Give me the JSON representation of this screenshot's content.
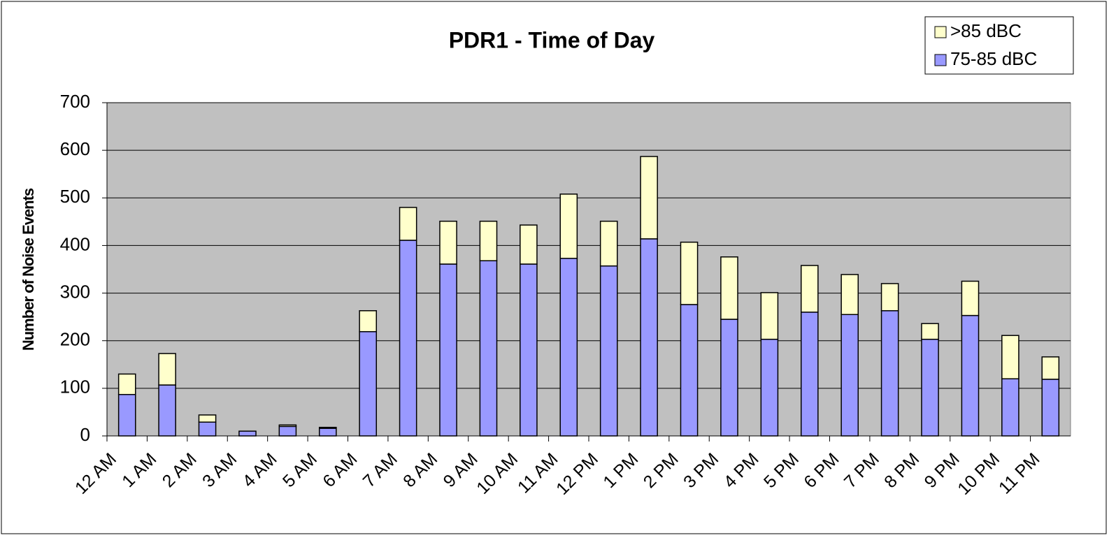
{
  "chart_data": {
    "type": "stacked_bar",
    "title": "PDR1 - Time of Day",
    "y_label": "Number of Noise Events",
    "categories": [
      "12 AM",
      "1 AM",
      "2 AM",
      "3 AM",
      "4 AM",
      "5 AM",
      "6 AM",
      "7 AM",
      "8 AM",
      "9 AM",
      "10 AM",
      "11 AM",
      "12 PM",
      "1 PM",
      "2 PM",
      "3 PM",
      "4 PM",
      "5 PM",
      "6 PM",
      "7 PM",
      "8 PM",
      "9 PM",
      "10 PM",
      "11 PM"
    ],
    "series": [
      {
        "name": "75-85 dBC",
        "color": "#9999ff",
        "values": [
          87,
          107,
          29,
          10,
          20,
          16,
          219,
          411,
          361,
          368,
          361,
          373,
          357,
          414,
          276,
          245,
          203,
          260,
          255,
          263,
          203,
          253,
          120,
          119
        ]
      },
      {
        "name": ">85 dBC",
        "color": "#ffffcc",
        "values": [
          43,
          66,
          15,
          0,
          3,
          2,
          44,
          69,
          90,
          83,
          82,
          135,
          94,
          173,
          131,
          131,
          98,
          98,
          84,
          57,
          33,
          72,
          91,
          47
        ]
      }
    ],
    "ylim": [
      0,
      700
    ],
    "yticks": [
      0,
      100,
      200,
      300,
      400,
      500,
      600,
      700
    ],
    "grid": true,
    "legend": "top-right"
  }
}
